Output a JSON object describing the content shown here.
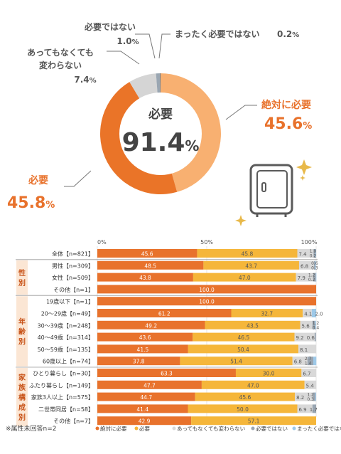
{
  "colors": {
    "absolutely": "#e8722c",
    "needed": "#f5b63a",
    "either": "#d9d9d9",
    "not_needed": "#9aa6b2",
    "not_at_all": "#9ec9e8",
    "donut_light": "#f8b071",
    "donut_dark": "#ea7428",
    "donut_gray": "#d5d5d5",
    "label_orange": "#e8722c",
    "label_gray": "#555555"
  },
  "donut": {
    "center_label": "必要",
    "center_value": "91.4",
    "center_unit": "%",
    "labels": {
      "absolutely": {
        "name": "絶対に必要",
        "value": "45.6",
        "unit": "%"
      },
      "needed": {
        "name": "必要",
        "value": "45.8",
        "unit": "%"
      },
      "either": {
        "line1": "あってもなくても",
        "line2": "変わらない",
        "value": "7.4",
        "unit": "%"
      },
      "not_needed": {
        "name": "必要ではない",
        "value": "1.0",
        "unit": "%"
      },
      "not_at_all": {
        "name": "まったく必要ではない",
        "value": "0.2",
        "unit": "%"
      }
    }
  },
  "chart_data": [
    {
      "type": "pie",
      "categories": [
        "絶対に必要",
        "必要",
        "あってもなくても変わらない",
        "必要ではない",
        "まったく必要ではない"
      ],
      "values": [
        45.6,
        45.8,
        7.4,
        1.0,
        0.2
      ],
      "center_text": "必要 91.4%"
    },
    {
      "type": "bar",
      "orientation": "horizontal",
      "stacked": true,
      "axis_ticks": [
        "0%",
        "50%",
        "100%"
      ],
      "xlim": [
        0,
        100
      ],
      "groups": [
        {
          "label": "",
          "rows": [
            0
          ]
        },
        {
          "label": "性別",
          "rows": [
            1,
            2,
            3
          ]
        },
        {
          "label": "年齢別",
          "rows": [
            4,
            5,
            6,
            7,
            8,
            9
          ]
        },
        {
          "label": "家族構成別",
          "rows": [
            10,
            11,
            12,
            13,
            14
          ]
        }
      ],
      "categories": [
        "全体【n=821】",
        "男性【n=309】",
        "女性【n=509】",
        "その他【n=1】",
        "19歳以下【n=1】",
        "20～29歳【n=49】",
        "30～39歳【n=248】",
        "40～49歳【n=314】",
        "50～59歳【n=135】",
        "60歳以上【n=74】",
        "ひとり暮らし【n=30】",
        "ふたり暮らし【n=149】",
        "家族3人以上【n=575】",
        "二世帯同居【n=58】",
        "その他【n=7】"
      ],
      "series": [
        {
          "name": "絶対に必要",
          "values": [
            45.6,
            48.5,
            43.8,
            100.0,
            100.0,
            61.2,
            49.2,
            43.6,
            41.5,
            37.8,
            63.3,
            47.7,
            44.7,
            41.4,
            42.9
          ]
        },
        {
          "name": "必要",
          "values": [
            45.8,
            43.7,
            47.0,
            0,
            0,
            32.7,
            43.5,
            46.5,
            50.4,
            51.4,
            30.0,
            47.0,
            45.6,
            50.0,
            57.1
          ]
        },
        {
          "name": "あってもなくても変わらない",
          "values": [
            7.4,
            6.8,
            7.9,
            0,
            0,
            4.1,
            5.6,
            9.2,
            8.1,
            6.8,
            6.7,
            5.4,
            8.2,
            6.9,
            0
          ]
        },
        {
          "name": "必要ではない",
          "values": [
            1.0,
            0.6,
            1.2,
            0,
            0,
            0,
            1.2,
            0.6,
            0,
            2.7,
            0,
            0,
            1.2,
            1.7,
            0
          ]
        },
        {
          "name": "まったく必要ではない",
          "values": [
            0.2,
            0.3,
            0.2,
            0,
            0,
            2.0,
            0.4,
            0,
            0,
            1.4,
            0,
            0,
            0.3,
            0,
            0
          ]
        }
      ],
      "labels": [
        [
          "45.6",
          "45.8",
          "7.4",
          "1.0",
          "0.2"
        ],
        [
          "48.5",
          "43.7",
          "6.8",
          "0.6",
          "0.3"
        ],
        [
          "43.8",
          "47.0",
          "7.9",
          "1.2",
          "0.2"
        ],
        [
          "100.0",
          "",
          "",
          "",
          ""
        ],
        [
          "100.0",
          "",
          "",
          "",
          ""
        ],
        [
          "61.2",
          "32.7",
          "4.1",
          "",
          "2.0"
        ],
        [
          "49.2",
          "43.5",
          "5.6",
          "1.2",
          "0.4"
        ],
        [
          "43.6",
          "46.5",
          "9.2",
          "0.6",
          ""
        ],
        [
          "41.5",
          "50.4",
          "8.1",
          "",
          ""
        ],
        [
          "37.8",
          "51.4",
          "6.8",
          "2.7",
          "1.4"
        ],
        [
          "63.3",
          "30.0",
          "6.7",
          "",
          ""
        ],
        [
          "47.7",
          "47.0",
          "5.4",
          "",
          ""
        ],
        [
          "44.7",
          "45.6",
          "8.2",
          "1.2",
          "0.3"
        ],
        [
          "41.4",
          "50.0",
          "6.9",
          "1.7",
          ""
        ],
        [
          "42.9",
          "57.1",
          "",
          "",
          ""
        ]
      ],
      "footnote": "※属性未回答n=2",
      "legend": [
        "絶対に必要",
        "必要",
        "あってもなくても変わらない",
        "必要ではない",
        "まったく必要ではない"
      ]
    }
  ]
}
